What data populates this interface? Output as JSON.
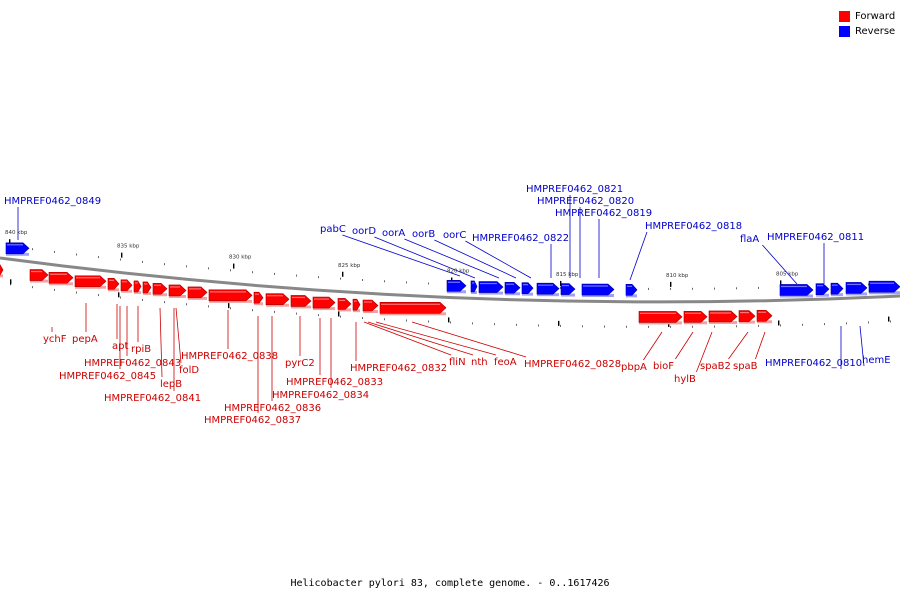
{
  "caption": "Helicobacter pylori 83, complete genome. - 0..1617426",
  "colors": {
    "forward": "#ff0000",
    "reverse": "#0000ff",
    "backbone": "#888888"
  },
  "legend": [
    {
      "label": "Forward",
      "color": "#ff0000"
    },
    {
      "label": "Reverse",
      "color": "#0000ff"
    }
  ],
  "scale_labels": [
    "840 kbp",
    "835 kbp",
    "830 kbp",
    "825 kbp",
    "820 kbp",
    "815 kbp",
    "810 kbp",
    "805 kbp"
  ],
  "forward_labels": [
    "ychF",
    "pepA",
    "apt",
    "rpiB",
    "HMPREF0462_0843",
    "HMPREF0462_0845",
    "lepB",
    "folD",
    "HMPREF0462_0841",
    "HMPREF0462_0838",
    "pyrC2",
    "HMPREF0462_0833",
    "HMPREF0462_0834",
    "HMPREF0462_0836",
    "HMPREF0462_0837",
    "HMPREF0462_0832",
    "fliN",
    "nth",
    "feoA",
    "HMPREF0462_0828",
    "pbpA",
    "bioF",
    "hylB",
    "spaB2",
    "spaB"
  ],
  "reverse_labels": [
    "HMPREF0462_0849",
    "pabC",
    "oorD",
    "oorA",
    "oorB",
    "oorC",
    "HMPREF0462_0822",
    "HMPREF0462_0821",
    "HMPREF0462_0820",
    "HMPREF0462_0819",
    "HMPREF0462_0818",
    "flaA",
    "HMPREF0462_0811",
    "HMPREF0462_0810",
    "hemE"
  ]
}
